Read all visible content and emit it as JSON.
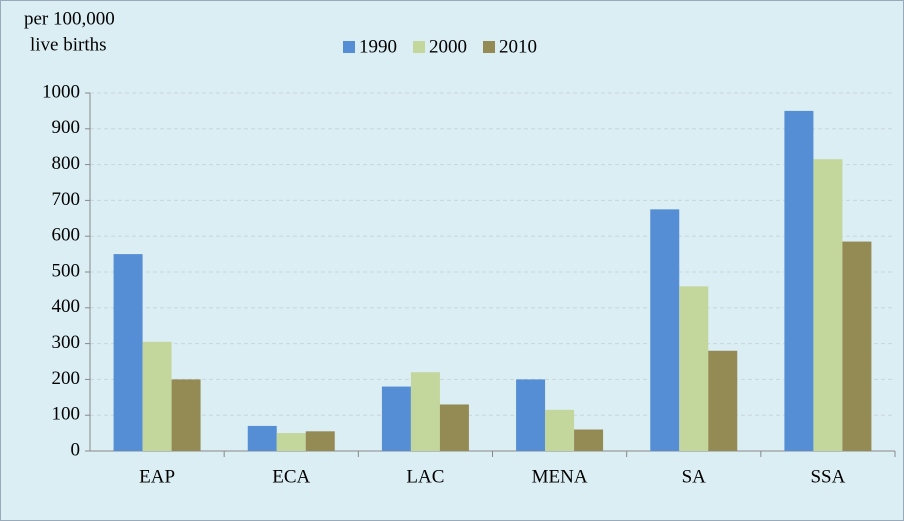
{
  "chart_data": {
    "type": "bar",
    "y_label": [
      "per 100,000",
      "live births"
    ],
    "categories": [
      "EAP",
      "ECA",
      "LAC",
      "MENA",
      "SA",
      "SSA"
    ],
    "series": [
      {
        "name": "1990",
        "color": "#558ed5",
        "values": [
          550,
          70,
          180,
          200,
          675,
          950
        ]
      },
      {
        "name": "2000",
        "color": "#c3d69b",
        "values": [
          305,
          50,
          220,
          115,
          460,
          815
        ]
      },
      {
        "name": "2010",
        "color": "#948a54",
        "values": [
          200,
          55,
          130,
          60,
          280,
          585
        ]
      }
    ],
    "ylim": [
      0,
      1000
    ],
    "yticks": [
      0,
      100,
      200,
      300,
      400,
      500,
      600,
      700,
      800,
      900,
      1000
    ],
    "grid": true,
    "legend": "top"
  }
}
